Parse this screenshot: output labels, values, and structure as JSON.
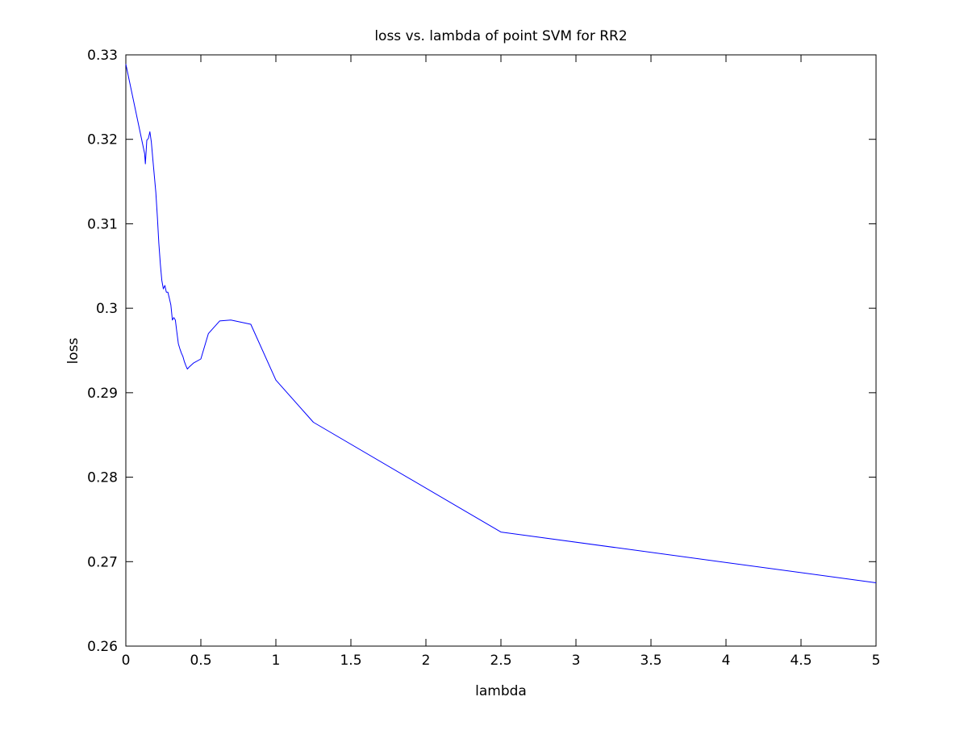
{
  "chart_data": {
    "type": "line",
    "title": "loss vs. lambda of point SVM for RR2",
    "xlabel": "lambda",
    "ylabel": "loss",
    "xlim": [
      0,
      5
    ],
    "ylim": [
      0.26,
      0.33
    ],
    "xticks": [
      0,
      0.5,
      1,
      1.5,
      2,
      2.5,
      3,
      3.5,
      4,
      4.5,
      5
    ],
    "xtick_labels": [
      "0",
      "0.5",
      "1",
      "1.5",
      "2",
      "2.5",
      "3",
      "3.5",
      "4",
      "4.5",
      "5"
    ],
    "yticks": [
      0.26,
      0.27,
      0.28,
      0.29,
      0.3,
      0.31,
      0.32,
      0.33
    ],
    "ytick_labels": [
      "0.26",
      "0.27",
      "0.28",
      "0.29",
      "0.3",
      "0.31",
      "0.32",
      "0.33"
    ],
    "grid": false,
    "box": true,
    "series": [
      {
        "color": "#0000ff",
        "x": [
          0,
          0.125,
          0.13,
          0.14,
          0.15,
          0.16,
          0.17,
          0.18,
          0.19,
          0.2,
          0.21,
          0.22,
          0.23,
          0.24,
          0.25,
          0.26,
          0.27,
          0.28,
          0.29,
          0.3,
          0.31,
          0.32,
          0.33,
          0.34,
          0.35,
          0.36,
          0.37,
          0.38,
          0.39,
          0.4,
          0.41,
          0.42,
          0.45,
          0.5,
          0.55,
          0.625,
          0.7,
          0.833,
          1.0,
          1.25,
          2.5,
          5.0
        ],
        "y": [
          0.3289,
          0.3183,
          0.3171,
          0.3199,
          0.3201,
          0.3209,
          0.3197,
          0.3176,
          0.3157,
          0.3137,
          0.3108,
          0.3077,
          0.3052,
          0.3033,
          0.3023,
          0.3027,
          0.3019,
          0.3019,
          0.3012,
          0.3004,
          0.2986,
          0.2989,
          0.2986,
          0.2972,
          0.2958,
          0.2952,
          0.2947,
          0.2943,
          0.2937,
          0.2932,
          0.2928,
          0.293,
          0.2935,
          0.294,
          0.297,
          0.2985,
          0.2986,
          0.2981,
          0.2915,
          0.2865,
          0.2735,
          0.2675
        ]
      }
    ]
  }
}
